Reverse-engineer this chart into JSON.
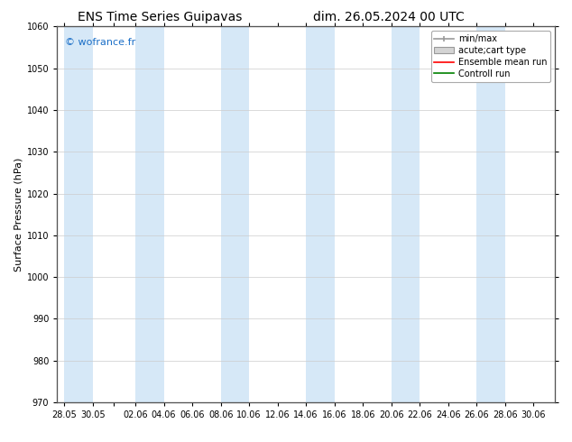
{
  "title_left": "ENS Time Series Guipavas",
  "title_right": "dim. 26.05.2024 00 UTC",
  "ylabel": "Surface Pressure (hPa)",
  "ylim": [
    970,
    1060
  ],
  "yticks": [
    970,
    980,
    990,
    1000,
    1010,
    1020,
    1030,
    1040,
    1050,
    1060
  ],
  "xtick_labels": [
    "28.05",
    "30.05",
    "",
    "02.06",
    "04.06",
    "06.06",
    "08.06",
    "10.06",
    "12.06",
    "14.06",
    "16.06",
    "18.06",
    "20.06",
    "22.06",
    "24.06",
    "26.06",
    "28.06",
    "30.06"
  ],
  "xtick_positions": [
    0,
    2,
    3.5,
    5,
    7,
    9,
    11,
    13,
    15,
    17,
    19,
    21,
    23,
    25,
    27,
    29,
    31,
    33
  ],
  "shaded_band_starts": [
    0,
    5,
    11,
    17,
    23,
    29
  ],
  "shaded_band_ends": [
    2,
    7,
    13,
    19,
    25,
    31
  ],
  "band_color": "#d6e8f7",
  "background_color": "#ffffff",
  "plot_bg_color": "#ffffff",
  "watermark_text": "© wofrance.fr",
  "watermark_color": "#1a6ec7",
  "legend_entries": [
    {
      "label": "min/max",
      "color": "#aaaaaa",
      "type": "errorbar"
    },
    {
      "label": "acute;cart type",
      "color": "#cccccc",
      "type": "box"
    },
    {
      "label": "Ensemble mean run",
      "color": "#ff0000",
      "type": "line"
    },
    {
      "label": "Controll run",
      "color": "#008000",
      "type": "line"
    }
  ],
  "title_fontsize": 10,
  "tick_fontsize": 7,
  "ylabel_fontsize": 8,
  "legend_fontsize": 7,
  "figsize": [
    6.34,
    4.9
  ],
  "dpi": 100,
  "xmin": -0.5,
  "xmax": 34.5
}
